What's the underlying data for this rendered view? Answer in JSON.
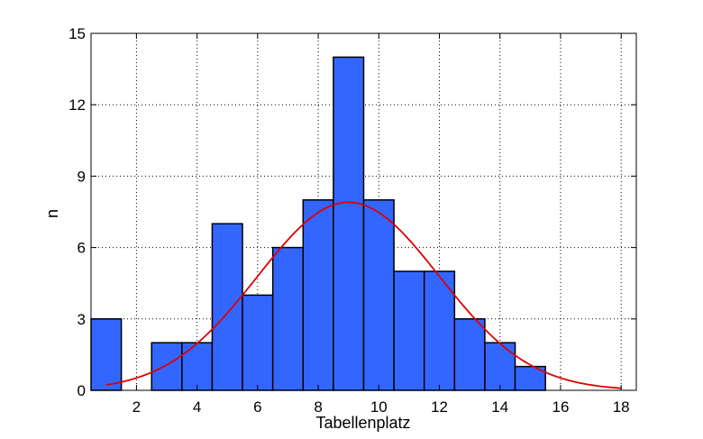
{
  "chart_data": {
    "type": "bar",
    "xlabel": "Tabellenplatz",
    "ylabel": "n",
    "xlim": [
      0.5,
      18.5
    ],
    "ylim": [
      0,
      15
    ],
    "x_ticks": [
      "2",
      "4",
      "6",
      "8",
      "10",
      "12",
      "14",
      "16",
      "18"
    ],
    "y_ticks": [
      "0",
      "3",
      "6",
      "9",
      "12",
      "15"
    ],
    "grid": true,
    "categories": [
      "1",
      "2",
      "3",
      "4",
      "5",
      "6",
      "7",
      "8",
      "9",
      "10",
      "11",
      "12",
      "13",
      "14",
      "15",
      "16",
      "17",
      "18"
    ],
    "values": [
      3,
      0,
      2,
      2,
      7,
      4,
      6,
      8,
      14,
      8,
      5,
      5,
      3,
      2,
      1,
      0,
      0,
      0
    ],
    "bar_color": "#3366ff",
    "fit_curve": {
      "type": "normal",
      "color": "#dd0000",
      "x_range": [
        1,
        18
      ],
      "mean": 9,
      "peak": 7.9,
      "sigma": 3.0
    }
  }
}
